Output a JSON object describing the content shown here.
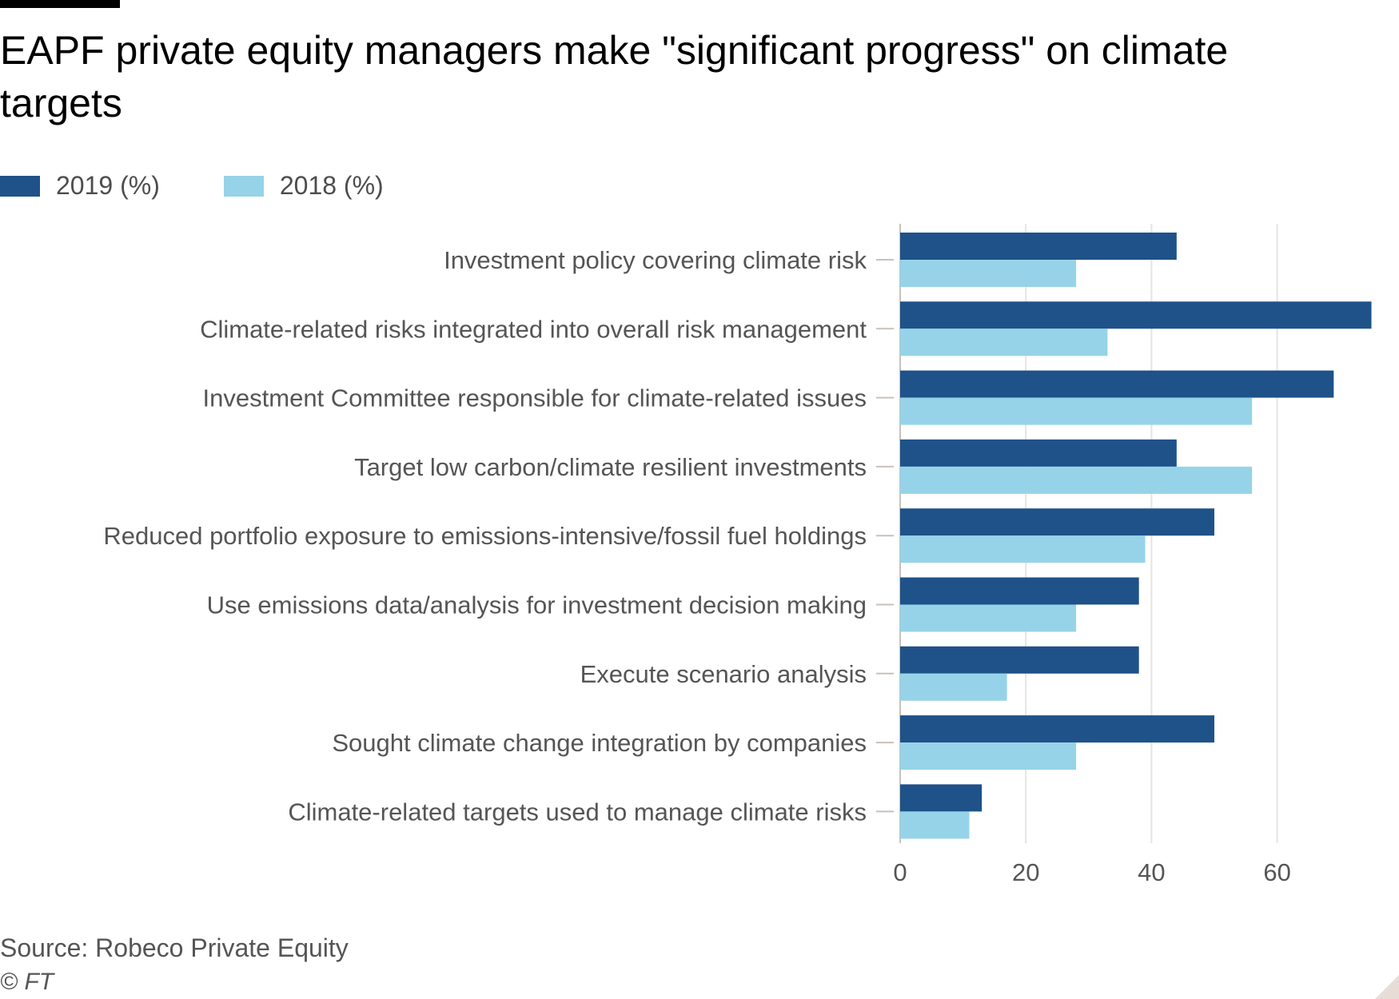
{
  "chart_data": {
    "type": "bar",
    "orientation": "horizontal",
    "title": "EAPF private equity managers make \"significant progress\" on climate targets",
    "categories": [
      "Investment policy covering climate risk",
      "Climate-related risks integrated into overall risk management",
      "Investment Committee responsible for climate-related issues",
      "Target low carbon/climate resilient investments",
      "Reduced portfolio exposure to emissions-intensive/fossil fuel holdings",
      "Use emissions data/analysis for investment decision making",
      "Execute scenario analysis",
      "Sought climate change integration by companies",
      "Climate-related targets used to manage climate risks"
    ],
    "series": [
      {
        "name": "2019 (%)",
        "color": "#1e5289",
        "values": [
          44,
          75,
          69,
          44,
          50,
          38,
          38,
          50,
          13
        ]
      },
      {
        "name": "2018 (%)",
        "color": "#96d3e8",
        "values": [
          28,
          33,
          56,
          56,
          39,
          28,
          17,
          28,
          11
        ]
      }
    ],
    "xlim": [
      0,
      75
    ],
    "xticks": [
      "0",
      "20",
      "40",
      "60"
    ],
    "grid": true,
    "legend_position": "top-left",
    "source": "Source: Robeco Private Equity",
    "credit": "© FT"
  }
}
